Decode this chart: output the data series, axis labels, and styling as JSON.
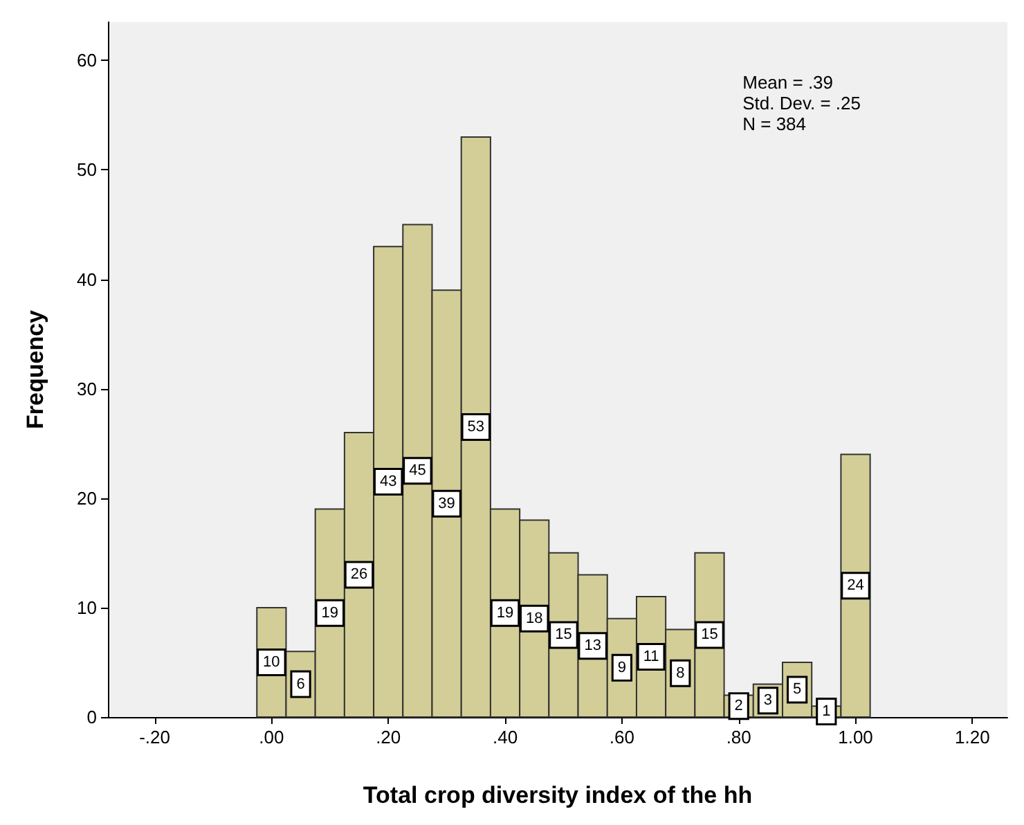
{
  "chart_data": {
    "type": "histogram",
    "bins": [
      -0.025,
      0.025,
      0.075,
      0.125,
      0.175,
      0.225,
      0.275,
      0.325,
      0.375,
      0.425,
      0.475,
      0.525,
      0.575,
      0.625,
      0.675,
      0.725,
      0.775,
      0.825,
      0.875,
      0.925,
      0.975,
      1.025
    ],
    "values": [
      10,
      6,
      19,
      26,
      43,
      45,
      39,
      53,
      19,
      18,
      15,
      13,
      9,
      11,
      8,
      15,
      2,
      3,
      5,
      1,
      24
    ],
    "color": "#d3ce97",
    "data_labels": true,
    "xlabel": "Total crop diversity index of the hh",
    "ylabel": "Frequency",
    "xlim": [
      -0.28,
      1.26
    ],
    "xticks": [
      {
        "value": -0.2,
        "label": "-.20"
      },
      {
        "value": 0,
        "label": ".00"
      },
      {
        "value": 0.2,
        "label": ".20"
      },
      {
        "value": 0.4,
        "label": ".40"
      },
      {
        "value": 0.6,
        "label": ".60"
      },
      {
        "value": 0.8,
        "label": ".80"
      },
      {
        "value": 1.0,
        "label": "1.00"
      },
      {
        "value": 1.2,
        "label": "1.20"
      }
    ],
    "ylim": [
      0,
      63.5
    ],
    "yticks": [
      0,
      10,
      20,
      30,
      40,
      50,
      60
    ],
    "grid": false,
    "annotations": [
      "Mean = .39",
      "Std. Dev. = .25",
      "N = 384"
    ]
  }
}
